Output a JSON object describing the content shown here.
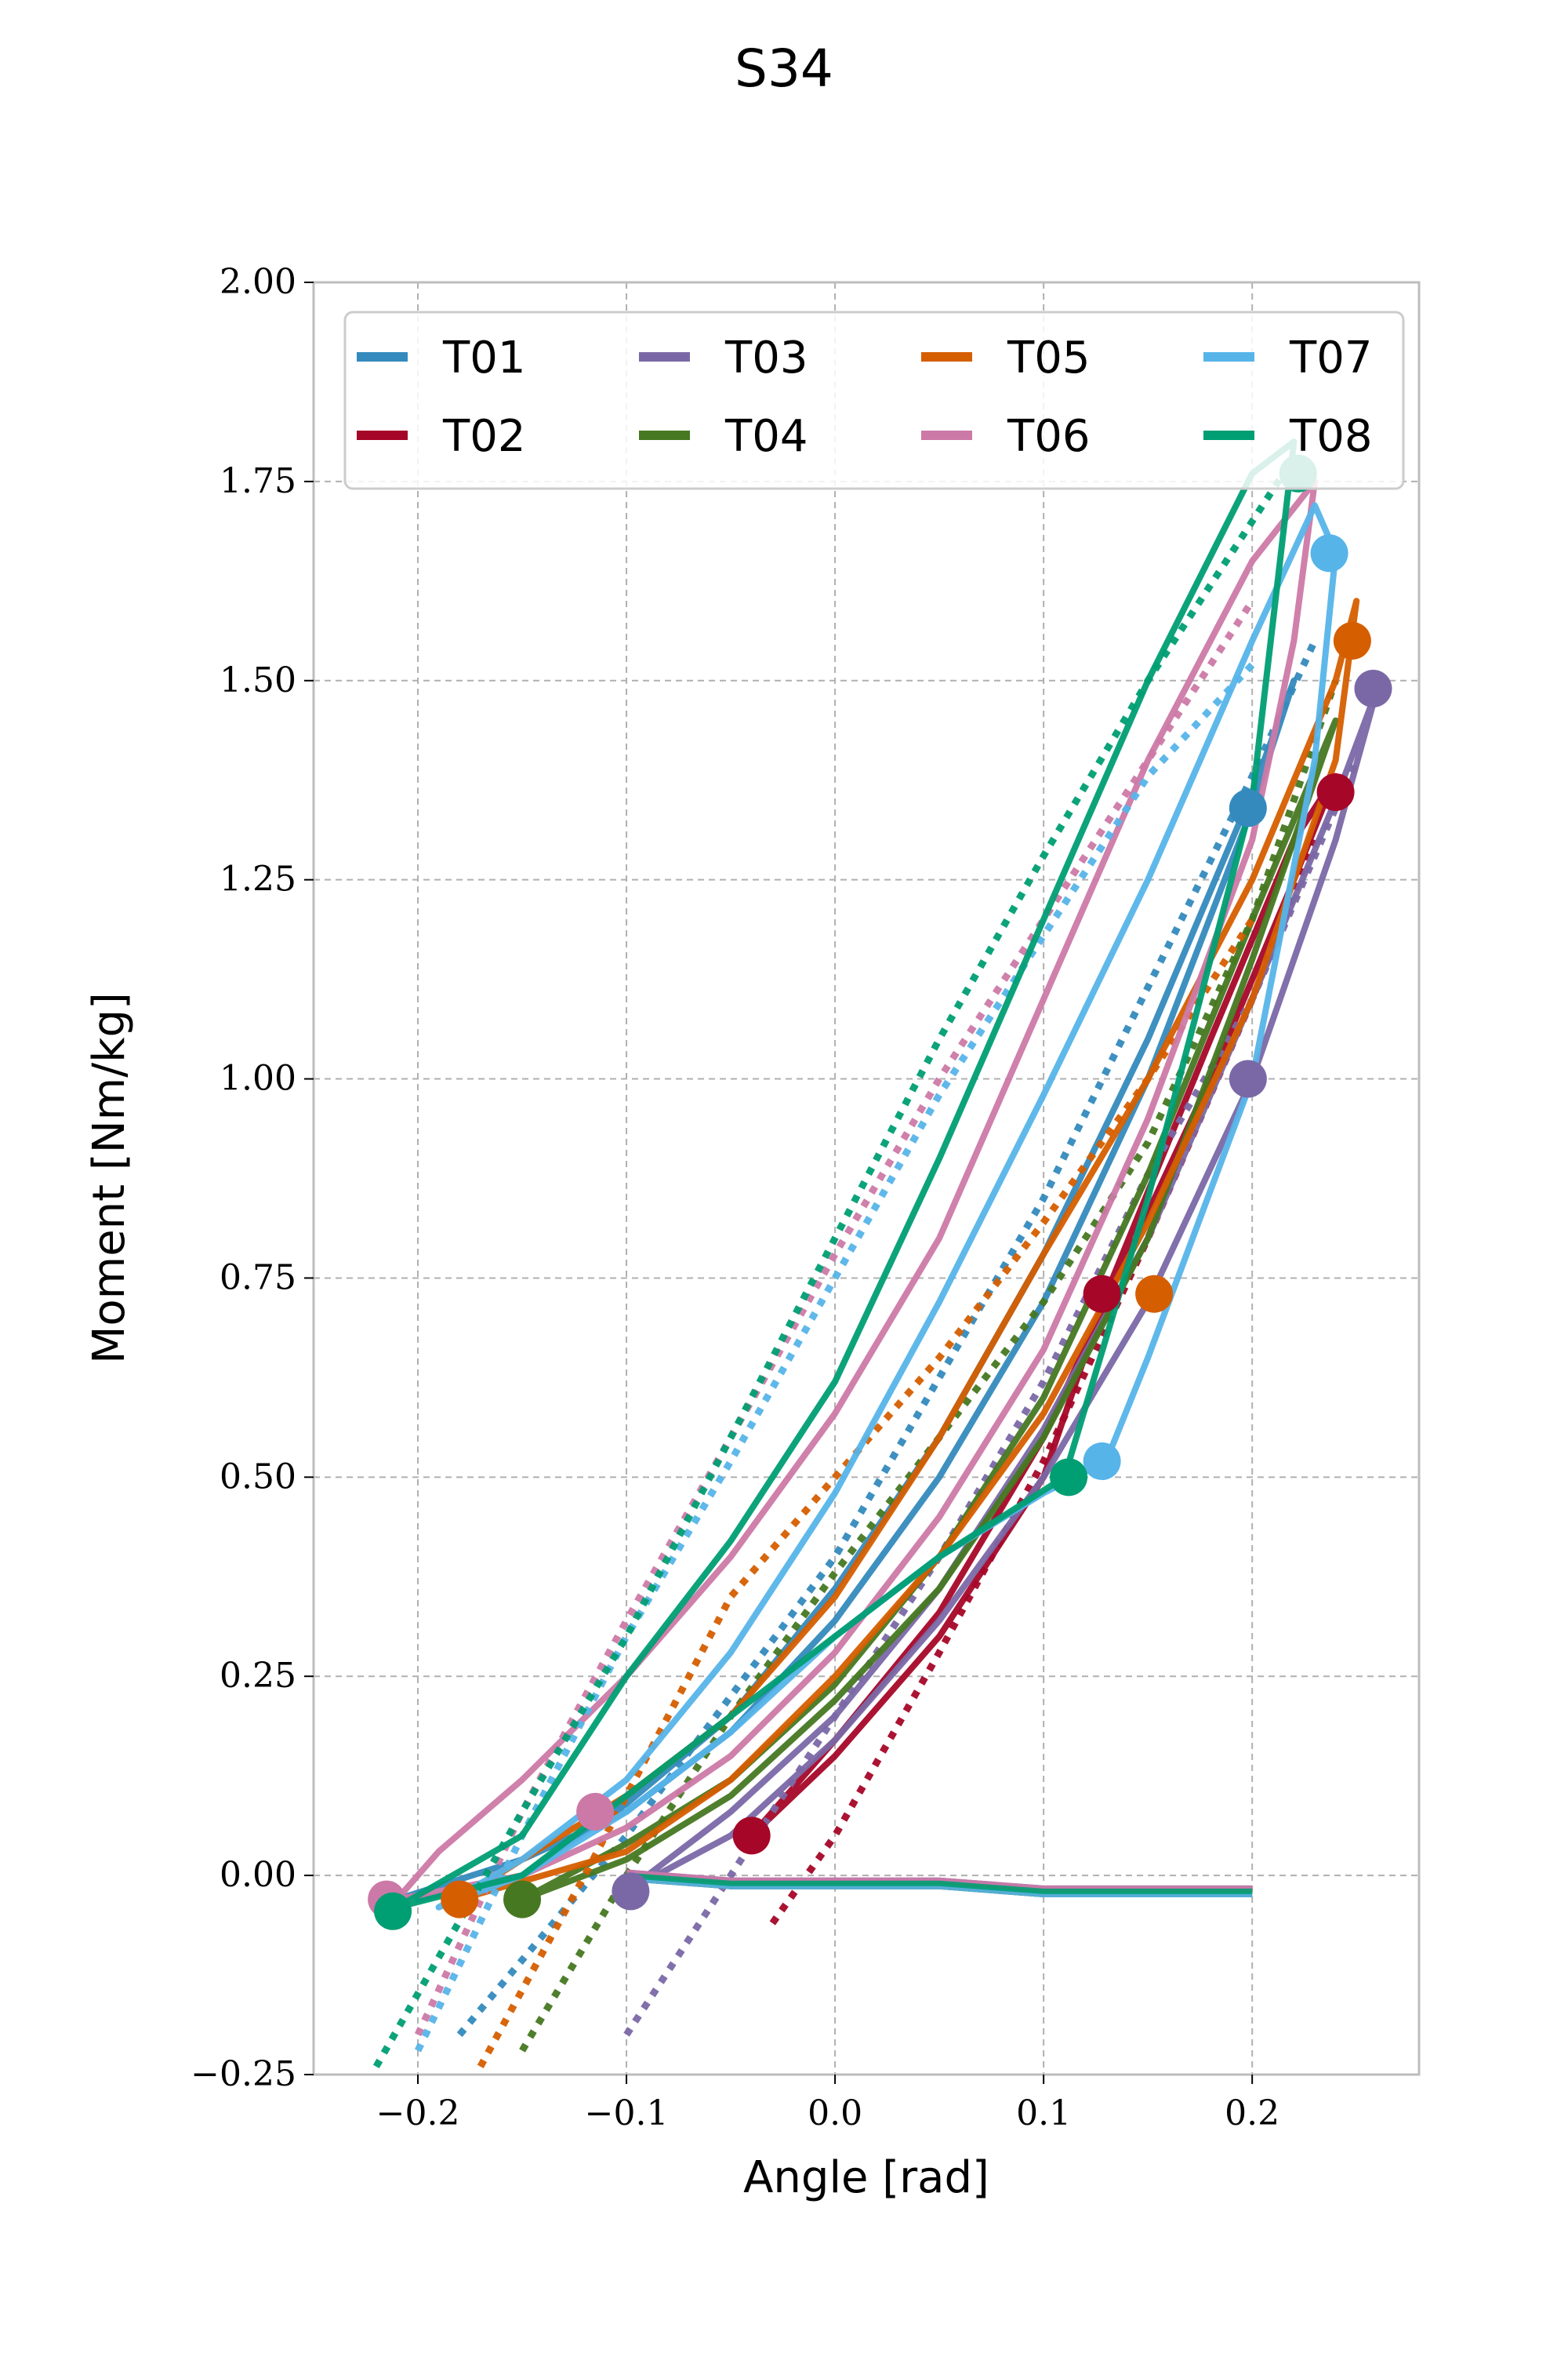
{
  "chart_data": {
    "type": "line",
    "title": "S34",
    "xlabel": "Angle [rad]",
    "ylabel": "Moment [Nm/kg]",
    "xlim": [
      -0.25,
      0.28
    ],
    "ylim": [
      -0.25,
      2.0
    ],
    "x_ticks": [
      -0.2,
      -0.1,
      0.0,
      0.1,
      0.2
    ],
    "x_tick_labels": [
      "−0.2",
      "−0.1",
      "0.0",
      "0.1",
      "0.2"
    ],
    "y_ticks": [
      -0.25,
      0.0,
      0.25,
      0.5,
      0.75,
      1.0,
      1.25,
      1.5,
      1.75,
      2.0
    ],
    "y_tick_labels": [
      "−0.25",
      "0.00",
      "0.25",
      "0.50",
      "0.75",
      "1.00",
      "1.25",
      "1.50",
      "1.75",
      "2.00"
    ],
    "grid": true,
    "legend_position": "top",
    "series": [
      {
        "name": "T01",
        "color": "#348ABD",
        "x": [
          -0.21,
          -0.15,
          -0.1,
          -0.05,
          0.0,
          0.05,
          0.1,
          0.15,
          0.2,
          0.22,
          0.2,
          0.15,
          0.1,
          0.05,
          0.0,
          -0.05,
          -0.1,
          -0.15,
          -0.2
        ],
        "y": [
          -0.03,
          0.02,
          0.08,
          0.18,
          0.32,
          0.5,
          0.72,
          1.0,
          1.34,
          1.5,
          1.36,
          1.05,
          0.78,
          0.55,
          0.36,
          0.2,
          0.09,
          0.0,
          -0.03
        ],
        "dotted": {
          "x": [
            -0.18,
            -0.1,
            0.0,
            0.1,
            0.2,
            0.23
          ],
          "y": [
            -0.2,
            0.05,
            0.4,
            0.85,
            1.38,
            1.55
          ]
        }
      },
      {
        "name": "T02",
        "color": "#A60628",
        "x": [
          -0.04,
          0.0,
          0.05,
          0.1,
          0.13,
          0.18,
          0.22,
          0.24,
          0.22,
          0.18,
          0.13,
          0.1,
          0.05,
          0.0,
          -0.04
        ],
        "y": [
          0.05,
          0.15,
          0.3,
          0.5,
          0.73,
          1.05,
          1.3,
          1.38,
          1.25,
          1.0,
          0.72,
          0.55,
          0.33,
          0.17,
          0.05
        ],
        "dotted": {
          "x": [
            -0.03,
            0.0,
            0.05,
            0.1,
            0.15,
            0.2,
            0.23
          ],
          "y": [
            -0.06,
            0.05,
            0.28,
            0.52,
            0.8,
            1.1,
            1.3
          ]
        }
      },
      {
        "name": "T03",
        "color": "#7A68A6",
        "x": [
          -0.1,
          -0.05,
          0.0,
          0.05,
          0.1,
          0.15,
          0.2,
          0.24,
          0.26,
          0.24,
          0.2,
          0.15,
          0.1,
          0.05,
          0.0,
          -0.05,
          -0.1
        ],
        "y": [
          -0.02,
          0.05,
          0.17,
          0.32,
          0.5,
          0.72,
          1.0,
          1.3,
          1.49,
          1.35,
          1.1,
          0.8,
          0.56,
          0.36,
          0.2,
          0.08,
          -0.02
        ],
        "dotted": {
          "x": [
            -0.1,
            -0.05,
            0.0,
            0.05,
            0.1,
            0.15,
            0.2,
            0.25
          ],
          "y": [
            -0.2,
            0.0,
            0.2,
            0.4,
            0.62,
            0.88,
            1.1,
            1.4
          ]
        }
      },
      {
        "name": "T04",
        "color": "#467821",
        "x": [
          -0.15,
          -0.1,
          -0.05,
          0.0,
          0.05,
          0.1,
          0.15,
          0.2,
          0.24,
          0.2,
          0.15,
          0.1,
          0.05,
          0.0,
          -0.05,
          -0.1,
          -0.15
        ],
        "y": [
          -0.03,
          0.02,
          0.1,
          0.22,
          0.36,
          0.55,
          0.8,
          1.15,
          1.45,
          1.2,
          0.88,
          0.6,
          0.4,
          0.24,
          0.12,
          0.04,
          -0.03
        ],
        "dotted": {
          "x": [
            -0.15,
            -0.1,
            -0.05,
            0.0,
            0.05,
            0.1,
            0.15,
            0.2,
            0.24
          ],
          "y": [
            -0.22,
            0.0,
            0.2,
            0.38,
            0.55,
            0.72,
            0.92,
            1.2,
            1.5
          ]
        }
      },
      {
        "name": "T05",
        "color": "#D55E00",
        "x": [
          -0.18,
          -0.1,
          -0.05,
          0.0,
          0.05,
          0.1,
          0.15,
          0.2,
          0.24,
          0.25,
          0.24,
          0.2,
          0.15,
          0.1,
          0.05,
          0.0,
          -0.05,
          -0.1,
          -0.15,
          -0.18
        ],
        "y": [
          -0.03,
          0.03,
          0.12,
          0.25,
          0.4,
          0.58,
          0.82,
          1.1,
          1.4,
          1.6,
          1.5,
          1.25,
          1.0,
          0.78,
          0.55,
          0.35,
          0.2,
          0.1,
          0.02,
          -0.03
        ],
        "dotted": {
          "x": [
            -0.17,
            -0.12,
            -0.05,
            0.0,
            0.05,
            0.1,
            0.15,
            0.2
          ],
          "y": [
            -0.24,
            0.0,
            0.35,
            0.5,
            0.65,
            0.82,
            1.0,
            1.2
          ]
        }
      },
      {
        "name": "T06",
        "color": "#CC79A7",
        "x": [
          -0.21,
          -0.19,
          -0.15,
          -0.1,
          -0.05,
          0.0,
          0.05,
          0.1,
          0.15,
          0.2,
          0.23,
          0.22,
          0.2,
          0.15,
          0.1,
          0.05,
          0.0,
          -0.05,
          -0.1,
          -0.15,
          -0.21
        ],
        "y": [
          -0.03,
          0.03,
          0.12,
          0.25,
          0.4,
          0.58,
          0.8,
          1.1,
          1.4,
          1.65,
          1.75,
          1.55,
          1.3,
          0.95,
          0.66,
          0.45,
          0.28,
          0.15,
          0.06,
          0.0,
          -0.03
        ],
        "dotted": {
          "x": [
            -0.2,
            -0.15,
            -0.1,
            -0.05,
            0.0,
            0.05,
            0.1,
            0.15,
            0.2
          ],
          "y": [
            -0.2,
            0.08,
            0.32,
            0.55,
            0.78,
            1.0,
            1.2,
            1.4,
            1.6
          ]
        }
      },
      {
        "name": "T07",
        "color": "#56B4E9",
        "x": [
          -0.19,
          -0.15,
          -0.1,
          -0.05,
          0.0,
          0.05,
          0.1,
          0.15,
          0.2,
          0.23,
          0.24,
          0.23,
          0.2,
          0.15,
          0.13,
          0.1,
          0.05,
          0.0,
          -0.05,
          -0.1,
          -0.15,
          -0.19
        ],
        "y": [
          -0.04,
          0.02,
          0.12,
          0.28,
          0.48,
          0.72,
          0.98,
          1.25,
          1.55,
          1.72,
          1.66,
          1.4,
          1.0,
          0.65,
          0.52,
          0.48,
          0.4,
          0.3,
          0.18,
          0.08,
          0.0,
          -0.04
        ],
        "dotted": {
          "x": [
            -0.2,
            -0.15,
            -0.1,
            -0.05,
            0.0,
            0.05,
            0.1,
            0.15,
            0.2
          ],
          "y": [
            -0.22,
            0.05,
            0.3,
            0.52,
            0.75,
            0.98,
            1.18,
            1.38,
            1.52
          ]
        }
      },
      {
        "name": "T08",
        "color": "#009E73",
        "x": [
          -0.21,
          -0.15,
          -0.1,
          -0.05,
          0.0,
          0.05,
          0.1,
          0.15,
          0.2,
          0.22,
          0.2,
          0.15,
          0.11,
          0.05,
          0.0,
          -0.05,
          -0.1,
          -0.15,
          -0.21
        ],
        "y": [
          -0.04,
          0.05,
          0.25,
          0.42,
          0.62,
          0.9,
          1.2,
          1.5,
          1.76,
          1.8,
          1.35,
          0.85,
          0.5,
          0.4,
          0.3,
          0.2,
          0.1,
          0.0,
          -0.04
        ],
        "dotted": {
          "x": [
            -0.22,
            -0.15,
            -0.1,
            -0.05,
            0.0,
            0.05,
            0.1,
            0.15,
            0.2,
            0.22
          ],
          "y": [
            -0.24,
            0.08,
            0.3,
            0.55,
            0.8,
            1.05,
            1.28,
            1.5,
            1.7,
            1.78
          ]
        }
      }
    ],
    "swing_phase": {
      "x": [
        -0.1,
        -0.05,
        0.0,
        0.05,
        0.1,
        0.15,
        0.2
      ],
      "y": [
        0.0,
        -0.01,
        -0.01,
        -0.01,
        -0.02,
        -0.02,
        -0.02
      ]
    },
    "markers": [
      {
        "series": "T01",
        "x": 0.198,
        "y": 1.34
      },
      {
        "series": "T02",
        "x": -0.04,
        "y": 0.05
      },
      {
        "series": "T02",
        "x": 0.128,
        "y": 0.73
      },
      {
        "series": "T02",
        "x": 0.24,
        "y": 1.36
      },
      {
        "series": "T03",
        "x": 0.258,
        "y": 1.49
      },
      {
        "series": "T03",
        "x": 0.198,
        "y": 1.0
      },
      {
        "series": "T03",
        "x": -0.098,
        "y": -0.02
      },
      {
        "series": "T04",
        "x": -0.15,
        "y": -0.03
      },
      {
        "series": "T05",
        "x": -0.18,
        "y": -0.03
      },
      {
        "series": "T05",
        "x": 0.153,
        "y": 0.73
      },
      {
        "series": "T05",
        "x": 0.248,
        "y": 1.55
      },
      {
        "series": "T06",
        "x": -0.115,
        "y": 0.08
      },
      {
        "series": "T06",
        "x": -0.215,
        "y": -0.03
      },
      {
        "series": "T07",
        "x": 0.237,
        "y": 1.66
      },
      {
        "series": "T07",
        "x": 0.128,
        "y": 0.52
      },
      {
        "series": "T08",
        "x": 0.222,
        "y": 1.76
      },
      {
        "series": "T08",
        "x": 0.112,
        "y": 0.5
      },
      {
        "series": "T08",
        "x": -0.212,
        "y": -0.045
      }
    ]
  }
}
